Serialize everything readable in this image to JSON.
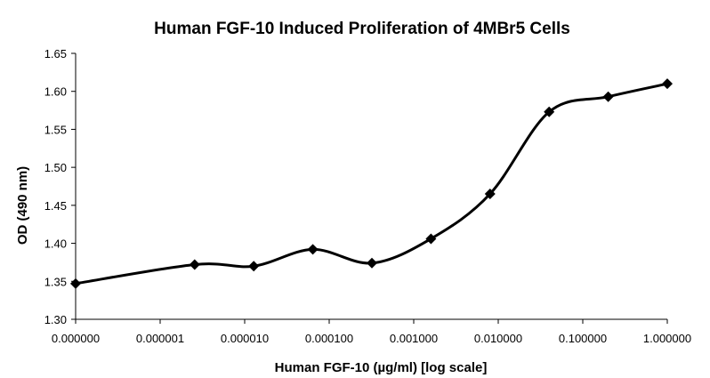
{
  "chart_data": {
    "type": "line",
    "title": "Human FGF-10 Induced Proliferation of 4MBr5 Cells",
    "xlabel": "Human FGF-10 (µg/ml) [log scale]",
    "ylabel": "OD (490 nm)",
    "x_scale": "log",
    "x_ticks": [
      "0.000000",
      "0.000001",
      "0.000010",
      "0.000100",
      "0.001000",
      "0.010000",
      "0.100000",
      "1.000000"
    ],
    "y_ticks": [
      "1.30",
      "1.35",
      "1.40",
      "1.45",
      "1.50",
      "1.55",
      "1.60",
      "1.65"
    ],
    "ylim": [
      1.3,
      1.65
    ],
    "grid": false,
    "legend": "none",
    "series_color": "#000000",
    "marker": "diamond",
    "smooth": true,
    "x": [
      1e-07,
      2.56e-06,
      1.28e-05,
      6.4e-05,
      0.00032,
      0.0016,
      0.008,
      0.04,
      0.2,
      1.0
    ],
    "y": [
      1.347,
      1.372,
      1.37,
      1.392,
      1.374,
      1.406,
      1.465,
      1.573,
      1.593,
      1.61
    ]
  }
}
